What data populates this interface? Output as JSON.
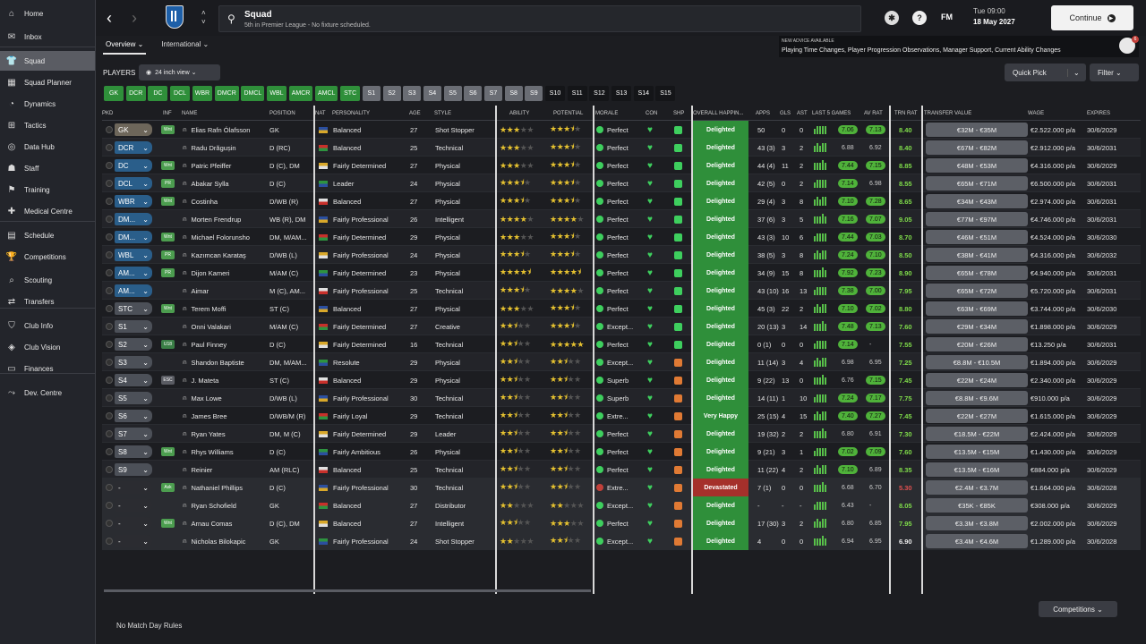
{
  "sidebar": {
    "items": [
      {
        "label": "Home",
        "icon": "home-icon"
      },
      {
        "label": "Inbox",
        "icon": "inbox-icon"
      },
      {
        "label": "Squad",
        "icon": "squad-icon",
        "active": true
      },
      {
        "label": "Squad Planner",
        "icon": "planner-icon"
      },
      {
        "label": "Dynamics",
        "icon": "dynamics-icon"
      },
      {
        "label": "Tactics",
        "icon": "tactics-icon"
      },
      {
        "label": "Data Hub",
        "icon": "datahub-icon"
      },
      {
        "label": "Staff",
        "icon": "staff-icon"
      },
      {
        "label": "Training",
        "icon": "training-icon"
      },
      {
        "label": "Medical Centre",
        "icon": "medical-icon"
      },
      {
        "label": "Schedule",
        "icon": "schedule-icon"
      },
      {
        "label": "Competitions",
        "icon": "trophy-icon"
      },
      {
        "label": "Scouting",
        "icon": "scouting-icon"
      },
      {
        "label": "Transfers",
        "icon": "transfers-icon"
      },
      {
        "label": "Club Info",
        "icon": "club-info-icon"
      },
      {
        "label": "Club Vision",
        "icon": "club-vision-icon"
      },
      {
        "label": "Finances",
        "icon": "finances-icon"
      },
      {
        "label": "Dev. Centre",
        "icon": "dev-centre-icon"
      }
    ]
  },
  "header": {
    "title": "Squad",
    "subtitle": "5th in Premier League - No fixture scheduled.",
    "fm": "FM",
    "day": "Tue 09:00",
    "date": "18 May 2027",
    "continue": "Continue",
    "back": "‹",
    "forward": "›"
  },
  "subtabs": [
    {
      "label": "Overview ⌄"
    },
    {
      "label": "International ⌄"
    }
  ],
  "advice": {
    "header": "NEW ADVICE AVAILABLE",
    "text": "Playing Time Changes, Player Progression Observations, Manager Support, Current Ability Changes",
    "badge": "6"
  },
  "toolbar": {
    "players": "PLAYERS",
    "view": "24 inch view ⌄",
    "quick_pick": "Quick Pick",
    "filter": "Filter ⌄"
  },
  "chips": {
    "green": [
      "GK",
      "DCR",
      "DC",
      "DCL",
      "WBR",
      "DMCR",
      "DMCL",
      "WBL",
      "AMCR",
      "AMCL",
      "STC"
    ],
    "grey": [
      "S1",
      "S2",
      "S3",
      "S4",
      "S5",
      "S6",
      "S7",
      "S8",
      "S9"
    ],
    "dark": [
      "S10",
      "S11",
      "S12",
      "S13",
      "S14",
      "S15"
    ]
  },
  "columns": {
    "pkd": "PKD",
    "inf": "INF",
    "name": "NAME",
    "position": "POSITION",
    "nat": "NAT",
    "personality": "PERSONALITY",
    "age": "AGE",
    "style": "STYLE",
    "ability": "ABILITY",
    "potential": "POTENTIAL",
    "morale": "MORALE",
    "con": "CON",
    "shp": "SHP",
    "happiness": "OVERALL HAPPIN...",
    "apps": "APPS",
    "gls": "GLS",
    "ast": "AST",
    "last5": "LAST 5 GAMES",
    "avrat": "AV RAT",
    "trnrat": "TRN RAT",
    "value": "TRANSFER VALUE",
    "wage": "WAGE",
    "expires": "EXPIRES"
  },
  "players": [
    {
      "pkd": "GK",
      "inf": "Wnt",
      "name": "Elias Rafn Ólafsson",
      "position": "GK",
      "personality": "Balanced",
      "age": "27",
      "style": "Shot Stopper",
      "ability": 3,
      "potential": 3.5,
      "morale": "Perfect",
      "happiness": "Delighted",
      "apps": "50",
      "gls": "0",
      "ast": "0",
      "last_rat": "7.06",
      "av_rat": "7.13",
      "trn_rat": "8.40",
      "value": "€32M - €35M",
      "wage": "€2.522.000 p/a",
      "expires": "30/6/2029"
    },
    {
      "pkd": "DCR",
      "inf": "",
      "name": "Radu Drăgușin",
      "position": "D (RC)",
      "personality": "Balanced",
      "age": "25",
      "style": "Technical",
      "ability": 3,
      "potential": 3.5,
      "morale": "Perfect",
      "happiness": "Delighted",
      "apps": "43 (3)",
      "gls": "3",
      "ast": "2",
      "last_rat": "6.88",
      "av_rat": "6.92",
      "trn_rat": "8.40",
      "value": "€67M - €82M",
      "wage": "€2.912.000 p/a",
      "expires": "30/6/2031"
    },
    {
      "pkd": "DC",
      "inf": "Wnt",
      "name": "Patric Pfeiffer",
      "position": "D (C), DM",
      "personality": "Fairly Determined",
      "age": "27",
      "style": "Physical",
      "ability": 3,
      "potential": 3.5,
      "morale": "Perfect",
      "happiness": "Delighted",
      "apps": "44 (4)",
      "gls": "11",
      "ast": "2",
      "last_rat": "7.44",
      "av_rat": "7.15",
      "trn_rat": "8.85",
      "value": "€48M - €53M",
      "wage": "€4.316.000 p/a",
      "expires": "30/6/2029"
    },
    {
      "pkd": "DCL",
      "inf": "PR",
      "name": "Abakar Sylla",
      "position": "D (C)",
      "personality": "Leader",
      "age": "24",
      "style": "Physical",
      "ability": 3.5,
      "potential": 3.5,
      "morale": "Perfect",
      "happiness": "Delighted",
      "apps": "42 (5)",
      "gls": "0",
      "ast": "2",
      "last_rat": "7.14",
      "av_rat": "6.98",
      "trn_rat": "8.55",
      "value": "€65M - €71M",
      "wage": "€6.500.000 p/a",
      "expires": "30/6/2031"
    },
    {
      "pkd": "WBR",
      "inf": "Wnt",
      "name": "Costinha",
      "position": "D/WB (R)",
      "personality": "Balanced",
      "age": "27",
      "style": "Physical",
      "ability": 3.5,
      "potential": 3.5,
      "morale": "Perfect",
      "happiness": "Delighted",
      "apps": "29 (4)",
      "gls": "3",
      "ast": "8",
      "last_rat": "7.10",
      "av_rat": "7.28",
      "trn_rat": "8.65",
      "value": "€34M - €43M",
      "wage": "€2.974.000 p/a",
      "expires": "30/6/2031"
    },
    {
      "pkd": "DM...",
      "inf": "",
      "name": "Morten Frendrup",
      "position": "WB (R), DM",
      "personality": "Fairly Professional",
      "age": "26",
      "style": "Intelligent",
      "ability": 4,
      "potential": 4,
      "morale": "Perfect",
      "happiness": "Delighted",
      "apps": "37 (6)",
      "gls": "3",
      "ast": "5",
      "last_rat": "7.16",
      "av_rat": "7.07",
      "trn_rat": "9.05",
      "value": "€77M - €97M",
      "wage": "€4.746.000 p/a",
      "expires": "30/6/2031"
    },
    {
      "pkd": "DM...",
      "inf": "Wnt",
      "name": "Michael Folorunsho",
      "position": "DM, M/AM...",
      "personality": "Fairly Determined",
      "age": "29",
      "style": "Physical",
      "ability": 3,
      "potential": 3.5,
      "morale": "Perfect",
      "happiness": "Delighted",
      "apps": "43 (3)",
      "gls": "10",
      "ast": "6",
      "last_rat": "7.44",
      "av_rat": "7.03",
      "trn_rat": "8.70",
      "value": "€46M - €51M",
      "wage": "€4.524.000 p/a",
      "expires": "30/6/2030"
    },
    {
      "pkd": "WBL",
      "inf": "PR",
      "name": "Kazımcan Karataş",
      "position": "D/WB (L)",
      "personality": "Fairly Professional",
      "age": "24",
      "style": "Physical",
      "ability": 3.5,
      "potential": 3.5,
      "morale": "Perfect",
      "happiness": "Delighted",
      "apps": "38 (5)",
      "gls": "3",
      "ast": "8",
      "last_rat": "7.24",
      "av_rat": "7.10",
      "trn_rat": "8.50",
      "value": "€38M - €41M",
      "wage": "€4.316.000 p/a",
      "expires": "30/6/2032"
    },
    {
      "pkd": "AM...",
      "inf": "PR",
      "name": "Dijon Kameri",
      "position": "M/AM (C)",
      "personality": "Fairly Determined",
      "age": "23",
      "style": "Physical",
      "ability": 4.5,
      "potential": 4.5,
      "morale": "Perfect",
      "happiness": "Delighted",
      "apps": "34 (9)",
      "gls": "15",
      "ast": "8",
      "last_rat": "7.92",
      "av_rat": "7.23",
      "trn_rat": "8.90",
      "value": "€65M - €78M",
      "wage": "€4.940.000 p/a",
      "expires": "30/6/2031"
    },
    {
      "pkd": "AM...",
      "inf": "",
      "name": "Aimar",
      "position": "M (C), AM...",
      "personality": "Fairly Professional",
      "age": "25",
      "style": "Technical",
      "ability": 3.5,
      "potential": 4,
      "morale": "Perfect",
      "happiness": "Delighted",
      "apps": "43 (10)",
      "gls": "16",
      "ast": "13",
      "last_rat": "7.38",
      "av_rat": "7.00",
      "trn_rat": "7.95",
      "value": "€65M - €72M",
      "wage": "€5.720.000 p/a",
      "expires": "30/6/2031"
    },
    {
      "pkd": "STC",
      "inf": "Wnt",
      "name": "Terem Moffi",
      "position": "ST (C)",
      "personality": "Balanced",
      "age": "27",
      "style": "Physical",
      "ability": 3,
      "potential": 3.5,
      "morale": "Perfect",
      "happiness": "Delighted",
      "apps": "45 (3)",
      "gls": "22",
      "ast": "2",
      "last_rat": "7.10",
      "av_rat": "7.02",
      "trn_rat": "8.80",
      "value": "€63M - €69M",
      "wage": "€3.744.000 p/a",
      "expires": "30/6/2030"
    },
    {
      "pkd": "S1",
      "inf": "",
      "name": "Onni Valakari",
      "position": "M/AM (C)",
      "personality": "Fairly Determined",
      "age": "27",
      "style": "Creative",
      "ability": 2.5,
      "potential": 3.5,
      "morale": "Except...",
      "happiness": "Delighted",
      "apps": "20 (13)",
      "gls": "3",
      "ast": "14",
      "last_rat": "7.48",
      "av_rat": "7.13",
      "trn_rat": "7.60",
      "value": "€29M - €34M",
      "wage": "€1.898.000 p/a",
      "expires": "30/6/2029"
    },
    {
      "pkd": "S2",
      "inf": "U18",
      "name": "Paul Finney",
      "position": "D (C)",
      "personality": "Fairly Determined",
      "age": "16",
      "style": "Technical",
      "ability": 2.5,
      "potential": 5,
      "morale": "Perfect",
      "happiness": "Delighted",
      "apps": "0 (1)",
      "gls": "0",
      "ast": "0",
      "last_rat": "7.14",
      "av_rat": "-",
      "trn_rat": "7.55",
      "value": "€20M - €26M",
      "wage": "€13.250 p/a",
      "expires": "30/6/2031"
    },
    {
      "pkd": "S3",
      "inf": "",
      "name": "Shandon Baptiste",
      "position": "DM, M/AM...",
      "personality": "Resolute",
      "age": "29",
      "style": "Physical",
      "ability": 2.5,
      "potential": 2.5,
      "morale": "Except...",
      "happiness": "Delighted",
      "apps": "11 (14)",
      "gls": "3",
      "ast": "4",
      "last_rat": "6.98",
      "av_rat": "6.95",
      "trn_rat": "7.25",
      "value": "€8.8M - €10.5M",
      "wage": "€1.894.000 p/a",
      "expires": "30/6/2029"
    },
    {
      "pkd": "S4",
      "inf": "ESC",
      "name": "J. Mateta",
      "position": "ST (C)",
      "personality": "Balanced",
      "age": "29",
      "style": "Physical",
      "ability": 2.5,
      "potential": 2.5,
      "morale": "Superb",
      "happiness": "Delighted",
      "apps": "9 (22)",
      "gls": "13",
      "ast": "0",
      "last_rat": "6.76",
      "av_rat": "7.15",
      "trn_rat": "7.45",
      "value": "€22M - €24M",
      "wage": "€2.340.000 p/a",
      "expires": "30/6/2029"
    },
    {
      "pkd": "S5",
      "inf": "",
      "name": "Max Lowe",
      "position": "D/WB (L)",
      "personality": "Fairly Professional",
      "age": "30",
      "style": "Technical",
      "ability": 2.5,
      "potential": 2.5,
      "morale": "Superb",
      "happiness": "Delighted",
      "apps": "14 (11)",
      "gls": "1",
      "ast": "10",
      "last_rat": "7.24",
      "av_rat": "7.17",
      "trn_rat": "7.75",
      "value": "€8.8M - €9.6M",
      "wage": "€910.000 p/a",
      "expires": "30/6/2029"
    },
    {
      "pkd": "S6",
      "inf": "",
      "name": "James Bree",
      "position": "D/WB/M (R)",
      "personality": "Fairly Loyal",
      "age": "29",
      "style": "Technical",
      "ability": 2.5,
      "potential": 2.5,
      "morale": "Extre...",
      "happiness": "Very Happy",
      "apps": "25 (15)",
      "gls": "4",
      "ast": "15",
      "last_rat": "7.40",
      "av_rat": "7.27",
      "trn_rat": "7.45",
      "value": "€22M - €27M",
      "wage": "€1.615.000 p/a",
      "expires": "30/6/2029"
    },
    {
      "pkd": "S7",
      "inf": "",
      "name": "Ryan Yates",
      "position": "DM, M (C)",
      "personality": "Fairly Determined",
      "age": "29",
      "style": "Leader",
      "ability": 2.5,
      "potential": 2.5,
      "morale": "Perfect",
      "happiness": "Delighted",
      "apps": "19 (32)",
      "gls": "2",
      "ast": "2",
      "last_rat": "6.80",
      "av_rat": "6.91",
      "trn_rat": "7.30",
      "value": "€18.5M - €22M",
      "wage": "€2.424.000 p/a",
      "expires": "30/6/2029"
    },
    {
      "pkd": "S8",
      "inf": "Wnt",
      "name": "Rhys Williams",
      "position": "D (C)",
      "personality": "Fairly Ambitious",
      "age": "26",
      "style": "Physical",
      "ability": 2.5,
      "potential": 2.5,
      "morale": "Perfect",
      "happiness": "Delighted",
      "apps": "9 (21)",
      "gls": "3",
      "ast": "1",
      "last_rat": "7.02",
      "av_rat": "7.09",
      "trn_rat": "7.60",
      "value": "€13.5M - €15M",
      "wage": "€1.430.000 p/a",
      "expires": "30/6/2029"
    },
    {
      "pkd": "S9",
      "inf": "",
      "name": "Reinier",
      "position": "AM (RLC)",
      "personality": "Balanced",
      "age": "25",
      "style": "Technical",
      "ability": 2.5,
      "potential": 2.5,
      "morale": "Perfect",
      "happiness": "Delighted",
      "apps": "11 (22)",
      "gls": "4",
      "ast": "2",
      "last_rat": "7.10",
      "av_rat": "6.89",
      "trn_rat": "8.35",
      "value": "€13.5M - €16M",
      "wage": "€884.000 p/a",
      "expires": "30/6/2029"
    },
    {
      "pkd": "-",
      "inf": "Ask",
      "name": "Nathaniel Phillips",
      "position": "D (C)",
      "personality": "Fairly Professional",
      "age": "30",
      "style": "Technical",
      "ability": 2.5,
      "potential": 2.5,
      "morale": "Extre...",
      "happiness": "Devastated",
      "apps": "7 (1)",
      "gls": "0",
      "ast": "0",
      "last_rat": "6.68",
      "av_rat": "6.70",
      "trn_rat": "5.30",
      "value": "€2.4M - €3.7M",
      "wage": "€1.664.000 p/a",
      "expires": "30/6/2028"
    },
    {
      "pkd": "-",
      "inf": "",
      "name": "Ryan Schofield",
      "position": "GK",
      "personality": "Balanced",
      "age": "27",
      "style": "Distributor",
      "ability": 2,
      "potential": 2,
      "morale": "Except...",
      "happiness": "Delighted",
      "apps": "-",
      "gls": "-",
      "ast": "-",
      "last_rat": "6.43",
      "av_rat": "-",
      "trn_rat": "8.05",
      "value": "€35K - €85K",
      "wage": "€308.000 p/a",
      "expires": "30/6/2029"
    },
    {
      "pkd": "-",
      "inf": "Wnt",
      "name": "Arnau Comas",
      "position": "D (C), DM",
      "personality": "Balanced",
      "age": "27",
      "style": "Intelligent",
      "ability": 2.5,
      "potential": 3,
      "morale": "Perfect",
      "happiness": "Delighted",
      "apps": "17 (30)",
      "gls": "3",
      "ast": "2",
      "last_rat": "6.80",
      "av_rat": "6.85",
      "trn_rat": "7.95",
      "value": "€3.3M - €3.8M",
      "wage": "€2.002.000 p/a",
      "expires": "30/6/2029"
    },
    {
      "pkd": "-",
      "inf": "",
      "name": "Nicholas Bilokapic",
      "position": "GK",
      "personality": "Fairly Professional",
      "age": "24",
      "style": "Shot Stopper",
      "ability": 2,
      "potential": 2.5,
      "morale": "Except...",
      "happiness": "Delighted",
      "apps": "4",
      "gls": "0",
      "ast": "0",
      "last_rat": "6.94",
      "av_rat": "6.95",
      "trn_rat": "6.90",
      "value": "€3.4M - €4.6M",
      "wage": "€1.289.000 p/a",
      "expires": "30/6/2028"
    }
  ],
  "footer": {
    "competitions": "Competitions ⌄",
    "rules": "No Match Day Rules"
  },
  "colors": {
    "green": "#2f8f3a",
    "accent_green": "#3ecf5e",
    "red": "#a5302b",
    "star": "#e6c230"
  }
}
